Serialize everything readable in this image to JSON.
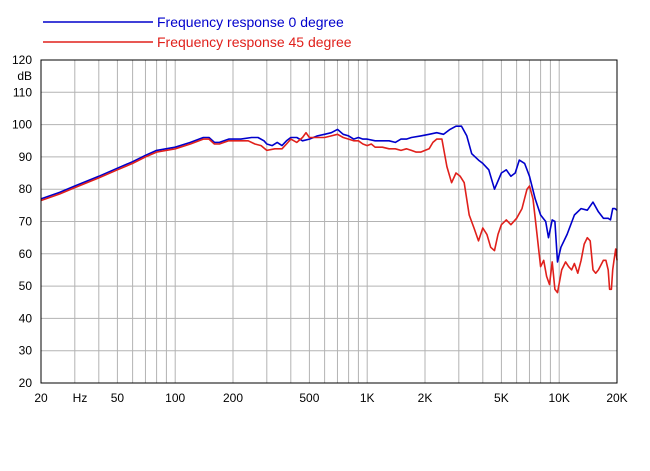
{
  "chart_data": {
    "type": "line",
    "title": "",
    "xlabel": "",
    "ylabel": "",
    "x_scale": "log",
    "xlim": [
      20,
      20000
    ],
    "ylim": [
      20,
      120
    ],
    "grid": true,
    "legend_position": "top-left",
    "y_unit_label": "dB",
    "x_unit_label": "Hz",
    "x_ticks": [
      {
        "value": 20,
        "label": "20"
      },
      {
        "value": 50,
        "label": "50"
      },
      {
        "value": 100,
        "label": "100"
      },
      {
        "value": 200,
        "label": "200"
      },
      {
        "value": 500,
        "label": "500"
      },
      {
        "value": 1000,
        "label": "1K"
      },
      {
        "value": 2000,
        "label": "2K"
      },
      {
        "value": 5000,
        "label": "5K"
      },
      {
        "value": 10000,
        "label": "10K"
      },
      {
        "value": 20000,
        "label": "20K"
      }
    ],
    "y_ticks": [
      20,
      30,
      40,
      50,
      60,
      70,
      80,
      90,
      100,
      110,
      120
    ],
    "series": [
      {
        "name": "Frequency response 0 degree",
        "color": "#0000cc",
        "points": [
          [
            20,
            77
          ],
          [
            25,
            79
          ],
          [
            30,
            81
          ],
          [
            40,
            84
          ],
          [
            50,
            86.5
          ],
          [
            60,
            88.5
          ],
          [
            70,
            90.5
          ],
          [
            80,
            92
          ],
          [
            100,
            93
          ],
          [
            120,
            94.5
          ],
          [
            140,
            96
          ],
          [
            150,
            96
          ],
          [
            160,
            94.5
          ],
          [
            170,
            94.5
          ],
          [
            190,
            95.5
          ],
          [
            220,
            95.5
          ],
          [
            250,
            96
          ],
          [
            270,
            96
          ],
          [
            290,
            95
          ],
          [
            300,
            94
          ],
          [
            320,
            93.5
          ],
          [
            340,
            94.5
          ],
          [
            360,
            93.5
          ],
          [
            380,
            95
          ],
          [
            400,
            96
          ],
          [
            430,
            96
          ],
          [
            460,
            95
          ],
          [
            500,
            95.5
          ],
          [
            550,
            96.5
          ],
          [
            600,
            97
          ],
          [
            650,
            97.5
          ],
          [
            700,
            98.5
          ],
          [
            750,
            97
          ],
          [
            800,
            96.5
          ],
          [
            850,
            95.5
          ],
          [
            900,
            96
          ],
          [
            950,
            95.5
          ],
          [
            1000,
            95.5
          ],
          [
            1100,
            95
          ],
          [
            1200,
            95
          ],
          [
            1300,
            95
          ],
          [
            1400,
            94.5
          ],
          [
            1500,
            95.5
          ],
          [
            1600,
            95.5
          ],
          [
            1700,
            96
          ],
          [
            1900,
            96.5
          ],
          [
            2100,
            97
          ],
          [
            2300,
            97.5
          ],
          [
            2500,
            97
          ],
          [
            2700,
            98.5
          ],
          [
            2900,
            99.5
          ],
          [
            3100,
            99.5
          ],
          [
            3300,
            96.5
          ],
          [
            3500,
            91
          ],
          [
            3800,
            89
          ],
          [
            4000,
            88
          ],
          [
            4300,
            86
          ],
          [
            4600,
            80
          ],
          [
            5000,
            85
          ],
          [
            5300,
            86
          ],
          [
            5600,
            84
          ],
          [
            5900,
            85
          ],
          [
            6200,
            89
          ],
          [
            6600,
            88
          ],
          [
            7000,
            84
          ],
          [
            7500,
            77
          ],
          [
            8000,
            72
          ],
          [
            8500,
            70
          ],
          [
            8800,
            65
          ],
          [
            9200,
            70.5
          ],
          [
            9500,
            70
          ],
          [
            9800,
            57.5
          ],
          [
            10200,
            62
          ],
          [
            11000,
            66
          ],
          [
            12000,
            72
          ],
          [
            13000,
            74
          ],
          [
            14000,
            73.5
          ],
          [
            15000,
            76
          ],
          [
            16000,
            73
          ],
          [
            17000,
            71
          ],
          [
            18000,
            71
          ],
          [
            18500,
            70.5
          ],
          [
            19000,
            74
          ],
          [
            19500,
            74
          ],
          [
            20000,
            73.5
          ]
        ]
      },
      {
        "name": "Frequency response 45 degree",
        "color": "#e0201b",
        "points": [
          [
            20,
            76.5
          ],
          [
            25,
            78.5
          ],
          [
            30,
            80.5
          ],
          [
            40,
            83.5
          ],
          [
            50,
            86
          ],
          [
            60,
            88
          ],
          [
            70,
            90
          ],
          [
            80,
            91.5
          ],
          [
            100,
            92.5
          ],
          [
            120,
            94
          ],
          [
            140,
            95.5
          ],
          [
            150,
            95.5
          ],
          [
            160,
            94
          ],
          [
            170,
            94
          ],
          [
            190,
            95
          ],
          [
            220,
            95
          ],
          [
            240,
            95
          ],
          [
            260,
            94
          ],
          [
            280,
            93.5
          ],
          [
            300,
            92
          ],
          [
            330,
            92.5
          ],
          [
            360,
            92.5
          ],
          [
            380,
            94
          ],
          [
            400,
            95.5
          ],
          [
            430,
            94.5
          ],
          [
            460,
            96
          ],
          [
            480,
            97.5
          ],
          [
            500,
            96
          ],
          [
            550,
            96
          ],
          [
            600,
            96
          ],
          [
            650,
            96.5
          ],
          [
            700,
            97
          ],
          [
            750,
            96
          ],
          [
            800,
            95.5
          ],
          [
            850,
            95
          ],
          [
            900,
            95
          ],
          [
            950,
            94
          ],
          [
            1000,
            93.5
          ],
          [
            1050,
            94
          ],
          [
            1100,
            93
          ],
          [
            1200,
            93
          ],
          [
            1300,
            92.5
          ],
          [
            1400,
            92.5
          ],
          [
            1500,
            92
          ],
          [
            1600,
            92.5
          ],
          [
            1700,
            92
          ],
          [
            1800,
            91.5
          ],
          [
            1900,
            91.5
          ],
          [
            2000,
            92
          ],
          [
            2100,
            92.5
          ],
          [
            2200,
            94.5
          ],
          [
            2300,
            95.5
          ],
          [
            2450,
            95.5
          ],
          [
            2600,
            87
          ],
          [
            2750,
            82
          ],
          [
            2900,
            85
          ],
          [
            3050,
            84
          ],
          [
            3200,
            82
          ],
          [
            3400,
            72
          ],
          [
            3600,
            68
          ],
          [
            3800,
            64
          ],
          [
            4000,
            68
          ],
          [
            4200,
            66
          ],
          [
            4400,
            62
          ],
          [
            4600,
            61
          ],
          [
            4800,
            66
          ],
          [
            5000,
            69
          ],
          [
            5300,
            70.5
          ],
          [
            5600,
            69
          ],
          [
            6000,
            71
          ],
          [
            6400,
            74
          ],
          [
            6800,
            80
          ],
          [
            7000,
            81
          ],
          [
            7300,
            77
          ],
          [
            7600,
            68
          ],
          [
            8000,
            56
          ],
          [
            8300,
            58
          ],
          [
            8600,
            53
          ],
          [
            8900,
            50.5
          ],
          [
            9200,
            57.5
          ],
          [
            9500,
            49
          ],
          [
            9800,
            48
          ],
          [
            10300,
            55
          ],
          [
            10800,
            57.5
          ],
          [
            11200,
            56
          ],
          [
            11600,
            55
          ],
          [
            12000,
            57
          ],
          [
            12500,
            54
          ],
          [
            13000,
            58
          ],
          [
            13500,
            63
          ],
          [
            14000,
            65
          ],
          [
            14500,
            64
          ],
          [
            15000,
            55
          ],
          [
            15500,
            54
          ],
          [
            16000,
            55
          ],
          [
            17000,
            58
          ],
          [
            17500,
            58
          ],
          [
            18000,
            55
          ],
          [
            18300,
            49
          ],
          [
            18700,
            49
          ],
          [
            19000,
            55
          ],
          [
            19300,
            58
          ],
          [
            19700,
            61.5
          ],
          [
            20000,
            58
          ]
        ]
      }
    ]
  }
}
